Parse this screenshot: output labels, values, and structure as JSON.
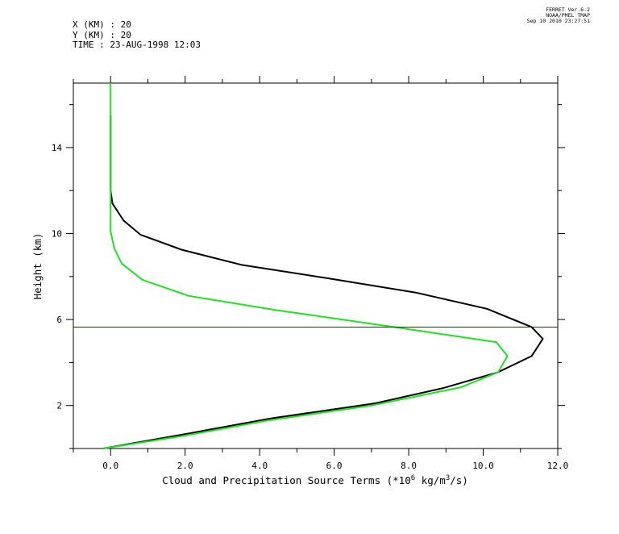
{
  "header": {
    "x_line": "X (KM) : 20",
    "y_line": "Y (KM) : 20",
    "time_line": "TIME : 23-AUG-1998 12:03"
  },
  "stamp": {
    "line1": "FERRET Ver.6.2",
    "line2": "NOAA/PMEL TMAP",
    "line3": "Sep 10 2010 23:27:51"
  },
  "chart_data": {
    "type": "line",
    "title": "",
    "xlabel": "Cloud and Precipitation Source Terms (*10",
    "xlabel_exp": "6",
    "xlabel_unit": " kg/m",
    "xlabel_unit_exp": "3",
    "xlabel_end": "/s)",
    "ylabel": "Height (km)",
    "xlim": [
      -1.0,
      12.0
    ],
    "ylim": [
      0.0,
      17.0
    ],
    "x_ticks": [
      0,
      2,
      4,
      6,
      8,
      10,
      12
    ],
    "x_tick_labels": [
      "0.0",
      "2.0",
      "4.0",
      "6.0",
      "8.0",
      "10.0",
      "12.0"
    ],
    "y_ticks": [
      2,
      6,
      10,
      14
    ],
    "y_tick_labels": [
      "2",
      "6",
      "10",
      "14"
    ],
    "grid": false,
    "hline": {
      "y": 5.65,
      "color": "#1a1a8c"
    },
    "series": [
      {
        "color": "#000000",
        "x": [
          -0.2,
          2.1,
          4.3,
          7.1,
          8.9,
          10.4,
          11.3,
          11.6,
          11.3,
          10.1,
          8.2,
          5.9,
          3.5,
          1.9,
          0.8,
          0.35,
          0.05,
          0.0,
          0.0,
          0.0,
          0.0,
          0.0
        ],
        "y": [
          0.0,
          0.7,
          1.4,
          2.1,
          2.8,
          3.55,
          4.3,
          5.1,
          5.65,
          6.5,
          7.25,
          7.9,
          8.55,
          9.25,
          9.95,
          10.6,
          11.4,
          12.0,
          12.5,
          13.0,
          14.0,
          15.5
        ]
      },
      {
        "color": "#22e022",
        "x": [
          -0.2,
          2.0,
          4.2,
          7.0,
          9.4,
          10.4,
          10.65,
          10.35,
          7.6,
          4.4,
          2.1,
          0.85,
          0.3,
          0.1,
          0.0,
          0.0,
          0.0,
          0.0,
          0.0
        ],
        "y": [
          0.0,
          0.6,
          1.3,
          2.0,
          2.85,
          3.55,
          4.3,
          4.95,
          5.65,
          6.45,
          7.1,
          7.85,
          8.6,
          9.3,
          10.1,
          11.5,
          13.5,
          15.5,
          17.0
        ]
      }
    ]
  }
}
